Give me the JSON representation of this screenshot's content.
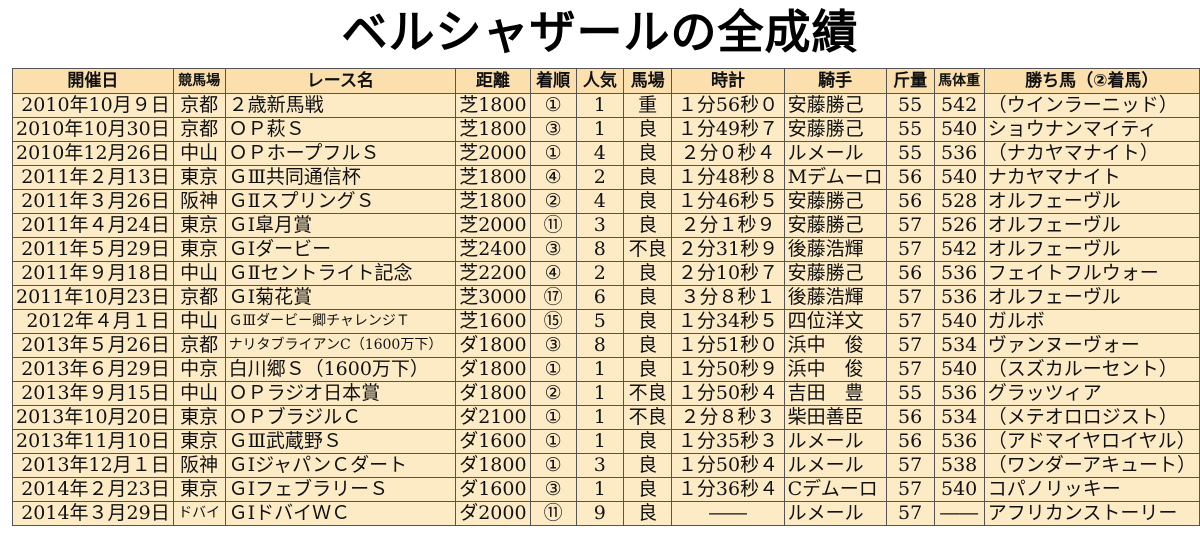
{
  "title": "ベルシャザールの全成績",
  "table": {
    "headers": [
      "開催日",
      "競馬場",
      "レース名",
      "距離",
      "着順",
      "人気",
      "馬場",
      "時計",
      "騎手",
      "斤量",
      "馬体重",
      "勝ち馬（②着馬）"
    ],
    "rows": [
      [
        "2010年10月９日",
        "京都",
        "２歳新馬戦",
        "芝1800",
        "①",
        "1",
        "重",
        "１分56秒０",
        "安藤勝己",
        "55",
        "542",
        "（ウインラーニッド）"
      ],
      [
        "2010年10月30日",
        "京都",
        "ＯＰ萩Ｓ",
        "芝1800",
        "③",
        "1",
        "良",
        "１分49秒７",
        "安藤勝己",
        "55",
        "540",
        "ショウナンマイティ"
      ],
      [
        "2010年12月26日",
        "中山",
        "ＯＰホープフルＳ",
        "芝2000",
        "①",
        "4",
        "良",
        "２分０秒４",
        "ルメール",
        "55",
        "536",
        "（ナカヤマナイト）"
      ],
      [
        "2011年２月13日",
        "東京",
        "ＧⅢ共同通信杯",
        "芝1800",
        "④",
        "2",
        "良",
        "１分48秒８",
        "Mデムーロ",
        "56",
        "540",
        "ナカヤマナイト"
      ],
      [
        "2011年３月26日",
        "阪神",
        "ＧⅡスプリングＳ",
        "芝1800",
        "②",
        "4",
        "良",
        "１分46秒５",
        "安藤勝己",
        "56",
        "528",
        "オルフェーヴル"
      ],
      [
        "2011年４月24日",
        "東京",
        "ＧⅠ皐月賞",
        "芝2000",
        "⑪",
        "3",
        "良",
        "２分１秒９",
        "安藤勝己",
        "57",
        "526",
        "オルフェーヴル"
      ],
      [
        "2011年５月29日",
        "東京",
        "ＧⅠダービー",
        "芝2400",
        "③",
        "8",
        "不良",
        "２分31秒９",
        "後藤浩輝",
        "57",
        "542",
        "オルフェーヴル"
      ],
      [
        "2011年９月18日",
        "中山",
        "ＧⅡセントライト記念",
        "芝2200",
        "④",
        "2",
        "良",
        "２分10秒７",
        "安藤勝己",
        "56",
        "536",
        "フェイトフルウォー"
      ],
      [
        "2011年10月23日",
        "京都",
        "ＧⅠ菊花賞",
        "芝3000",
        "⑰",
        "6",
        "良",
        "３分８秒１",
        "後藤浩輝",
        "57",
        "536",
        "オルフェーヴル"
      ],
      [
        "2012年４月１日",
        "中山",
        "ＧⅢダービー卿チャレンジＴ",
        "芝1600",
        "⑮",
        "5",
        "良",
        "１分34秒５",
        "四位洋文",
        "57",
        "540",
        "ガルボ"
      ],
      [
        "2013年５月26日",
        "京都",
        "ナリタブライアンC（1600万下）",
        "ダ1800",
        "③",
        "8",
        "良",
        "１分51秒０",
        "浜中　俊",
        "57",
        "534",
        "ヴァンヌーヴォー"
      ],
      [
        "2013年６月29日",
        "中京",
        "白川郷Ｓ（1600万下）",
        "ダ1800",
        "①",
        "1",
        "良",
        "１分50秒９",
        "浜中　俊",
        "57",
        "540",
        "（スズカルーセント）"
      ],
      [
        "2013年９月15日",
        "中山",
        "ＯＰラジオ日本賞",
        "ダ1800",
        "②",
        "1",
        "不良",
        "１分50秒４",
        "吉田　豊",
        "55",
        "536",
        "グラッツィア"
      ],
      [
        "2013年10月20日",
        "東京",
        "ＯＰブラジルＣ",
        "ダ2100",
        "①",
        "1",
        "不良",
        "２分８秒３",
        "柴田善臣",
        "56",
        "534",
        "（メテオロロジスト）"
      ],
      [
        "2013年11月10日",
        "東京",
        "ＧⅢ武蔵野Ｓ",
        "ダ1600",
        "①",
        "1",
        "良",
        "１分35秒３",
        "ルメール",
        "56",
        "536",
        "（アドマイヤロイヤル）"
      ],
      [
        "2013年12月１日",
        "阪神",
        "ＧⅠジャパンＣダート",
        "ダ1800",
        "①",
        "3",
        "良",
        "１分50秒４",
        "ルメール",
        "57",
        "538",
        "（ワンダーアキュート）"
      ],
      [
        "2014年２月23日",
        "東京",
        "ＧⅠフェブラリーＳ",
        "ダ1600",
        "③",
        "1",
        "良",
        "１分36秒４",
        "Cデムーロ",
        "57",
        "540",
        "コパノリッキー"
      ],
      [
        "2014年３月29日",
        "ドバイ",
        "ＧⅠドバイＷＣ",
        "ダ2000",
        "⑪",
        "9",
        "良",
        "――",
        "ルメール",
        "57",
        "――",
        "アフリカンストーリー"
      ]
    ]
  }
}
